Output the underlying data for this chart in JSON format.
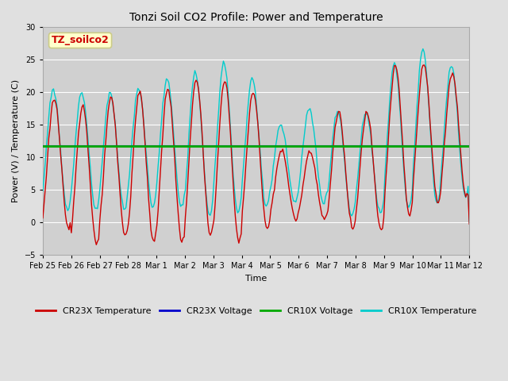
{
  "title": "Tonzi Soil CO2 Profile: Power and Temperature",
  "xlabel": "Time",
  "ylabel": "Power (V) / Temperature (C)",
  "ylim": [
    -5,
    30
  ],
  "yticks": [
    -5,
    0,
    5,
    10,
    15,
    20,
    25,
    30
  ],
  "x_tick_labels": [
    "Feb 25",
    "Feb 26",
    "Feb 27",
    "Feb 28",
    "Mar 1",
    "Mar 2",
    "Mar 3",
    "Mar 4",
    "Mar 5",
    "Mar 6",
    "Mar 7",
    "Mar 8",
    "Mar 9",
    "Mar 10",
    "Mar 11",
    "Mar 12"
  ],
  "cr23x_voltage_level": 11.8,
  "cr10x_voltage_level": 11.8,
  "annotation_text": "TZ_soilco2",
  "annotation_box_color": "#ffffcc",
  "annotation_text_color": "#cc0000",
  "annotation_edge_color": "#cccc88",
  "bg_color": "#e0e0e0",
  "plot_bg_color": "#d0d0d0",
  "cr23x_temp_color": "#cc0000",
  "cr23x_volt_color": "#0000cc",
  "cr10x_volt_color": "#00aa00",
  "cr10x_temp_color": "#00cccc",
  "line_width": 1.0,
  "legend_labels": [
    "CR23X Temperature",
    "CR23X Voltage",
    "CR10X Voltage",
    "CR10X Temperature"
  ],
  "legend_colors": [
    "#cc0000",
    "#0000cc",
    "#00aa00",
    "#00cccc"
  ],
  "title_fontsize": 10,
  "label_fontsize": 8,
  "tick_fontsize": 7,
  "legend_fontsize": 8
}
